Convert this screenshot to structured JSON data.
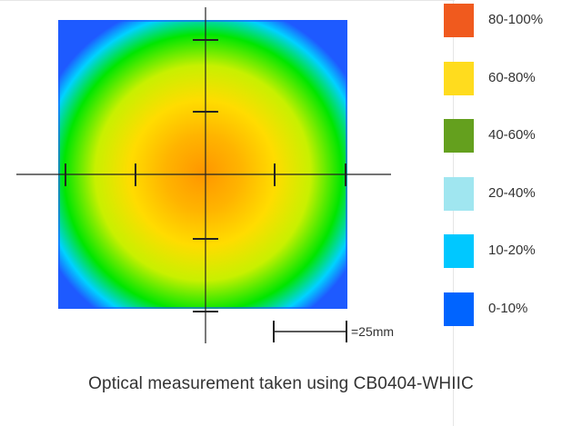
{
  "chart_data": {
    "type": "heatmap",
    "caption": "Optical measurement taken using CB0404-WHIIC",
    "scale_label": "=25mm",
    "legend": [
      {
        "label": "80-100%",
        "color": "#f05a1e"
      },
      {
        "label": "60-80%",
        "color": "#ffdc1e"
      },
      {
        "label": "40-60%",
        "color": "#64a01e"
      },
      {
        "label": "20-40%",
        "color": "#a0e6f0"
      },
      {
        "label": "10-20%",
        "color": "#00c8ff"
      },
      {
        "label": "0-10%",
        "color": "#0064ff"
      }
    ],
    "colorscale": [
      "#1e5aff",
      "#00d2ff",
      "#00e600",
      "#c8f000",
      "#ffdc00",
      "#ff9600"
    ]
  }
}
